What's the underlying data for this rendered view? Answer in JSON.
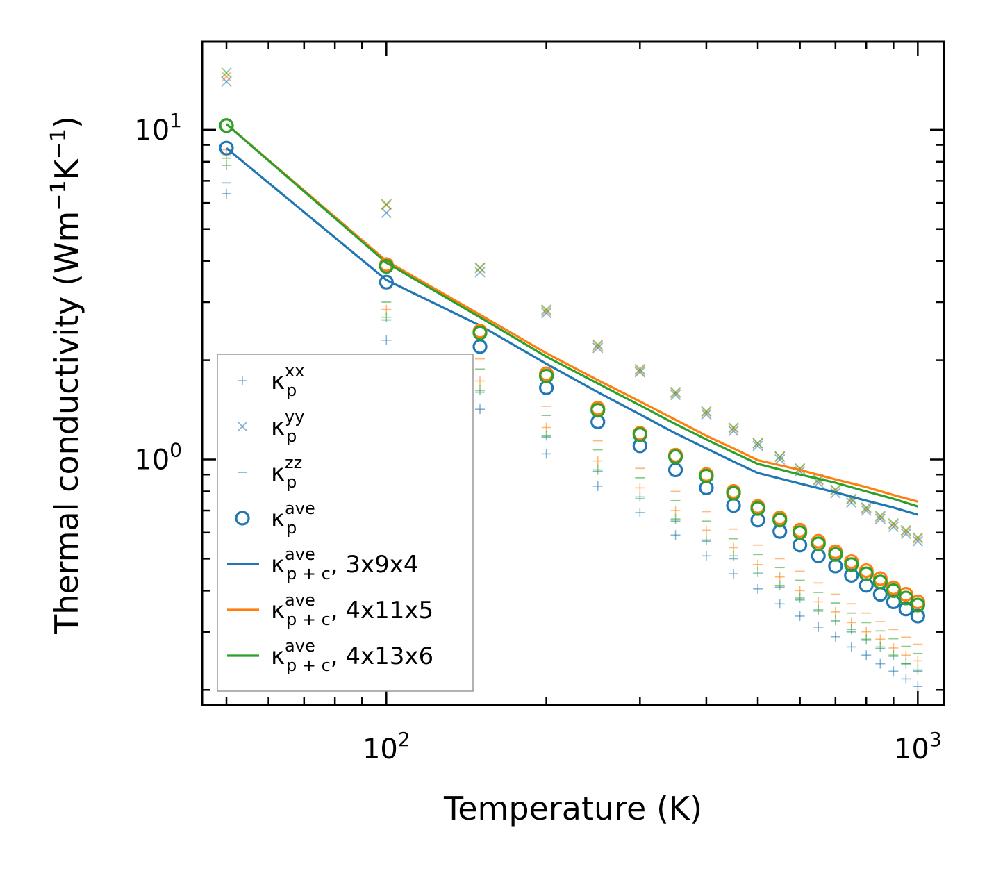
{
  "chart_data": {
    "type": "scatter",
    "xscale": "log",
    "yscale": "log",
    "xlabel": "Temperature (K)",
    "ylabel_parts": {
      "text": "Thermal conductivity (Wm",
      "exp1": "−1",
      "mid": "K",
      "exp2": "−1",
      "end": ")"
    },
    "xlim": [
      45,
      1120
    ],
    "ylim": [
      0.18,
      18.5
    ],
    "xticks": [
      {
        "value": 100,
        "base": "10",
        "exp": "2"
      },
      {
        "value": 1000,
        "base": "10",
        "exp": "3"
      }
    ],
    "yticks": [
      {
        "value": 1,
        "base": "10",
        "exp": "0"
      },
      {
        "value": 10,
        "base": "10",
        "exp": "1"
      }
    ],
    "temperatures": [
      50,
      100,
      150,
      200,
      250,
      300,
      350,
      400,
      450,
      500,
      550,
      600,
      650,
      700,
      750,
      800,
      850,
      900,
      950,
      1000
    ],
    "kappa_p_components": {
      "xx": {
        "3x9x4": [
          6.4,
          2.3,
          1.42,
          1.04,
          0.83,
          0.69,
          0.59,
          0.51,
          0.45,
          0.405,
          0.365,
          0.335,
          0.31,
          0.29,
          0.27,
          0.255,
          0.24,
          0.228,
          0.216,
          0.205
        ],
        "4x11x5": [
          8.4,
          2.85,
          1.73,
          1.25,
          0.99,
          0.82,
          0.7,
          0.61,
          0.54,
          0.48,
          0.44,
          0.4,
          0.37,
          0.345,
          0.32,
          0.3,
          0.285,
          0.268,
          0.255,
          0.245
        ],
        "4x13x6": [
          7.8,
          2.7,
          1.62,
          1.18,
          0.93,
          0.77,
          0.66,
          0.57,
          0.51,
          0.455,
          0.415,
          0.38,
          0.35,
          0.325,
          0.305,
          0.285,
          0.27,
          0.255,
          0.24,
          0.23
        ]
      },
      "yy": {
        "3x9x4": [
          14.0,
          5.6,
          3.7,
          2.78,
          2.18,
          1.84,
          1.57,
          1.37,
          1.22,
          1.1,
          1.0,
          0.92,
          0.85,
          0.79,
          0.74,
          0.7,
          0.66,
          0.625,
          0.595,
          0.565
        ],
        "4x11x5": [
          14.5,
          5.9,
          3.8,
          2.82,
          2.21,
          1.86,
          1.59,
          1.39,
          1.24,
          1.12,
          1.02,
          0.935,
          0.865,
          0.805,
          0.755,
          0.71,
          0.67,
          0.635,
          0.605,
          0.575
        ],
        "4x13x6": [
          14.9,
          5.95,
          3.82,
          2.85,
          2.23,
          1.88,
          1.6,
          1.4,
          1.25,
          1.12,
          1.02,
          0.94,
          0.87,
          0.81,
          0.76,
          0.715,
          0.675,
          0.64,
          0.61,
          0.58
        ]
      },
      "zz": {
        "3x9x4": [
          6.9,
          2.65,
          1.6,
          1.17,
          0.92,
          0.76,
          0.65,
          0.565,
          0.5,
          0.45,
          0.41,
          0.375,
          0.347,
          0.322,
          0.3,
          0.283,
          0.267,
          0.253,
          0.24,
          0.228
        ],
        "4x11x5": [
          8.7,
          3.3,
          2.02,
          1.45,
          1.14,
          0.94,
          0.8,
          0.695,
          0.615,
          0.55,
          0.5,
          0.458,
          0.422,
          0.39,
          0.365,
          0.342,
          0.322,
          0.305,
          0.289,
          0.275
        ],
        "4x13x6": [
          8.2,
          3.0,
          1.88,
          1.36,
          1.07,
          0.88,
          0.75,
          0.65,
          0.575,
          0.515,
          0.47,
          0.43,
          0.395,
          0.367,
          0.342,
          0.32,
          0.302,
          0.286,
          0.271,
          0.258
        ]
      }
    },
    "kappa_p_ave": {
      "3x9x4": [
        8.8,
        3.45,
        2.2,
        1.65,
        1.3,
        1.1,
        0.93,
        0.82,
        0.725,
        0.655,
        0.605,
        0.55,
        0.51,
        0.475,
        0.445,
        0.415,
        0.39,
        0.37,
        0.352,
        0.335
      ],
      "4x11x5": [
        10.3,
        3.9,
        2.45,
        1.82,
        1.43,
        1.2,
        1.03,
        0.9,
        0.8,
        0.72,
        0.665,
        0.61,
        0.565,
        0.525,
        0.49,
        0.46,
        0.435,
        0.408,
        0.39,
        0.37
      ],
      "4x13x6": [
        10.3,
        3.85,
        2.42,
        1.79,
        1.41,
        1.19,
        1.02,
        0.89,
        0.79,
        0.71,
        0.655,
        0.6,
        0.555,
        0.515,
        0.48,
        0.45,
        0.425,
        0.4,
        0.38,
        0.362
      ]
    },
    "kappa_pc_ave_curves": {
      "3x9x4": [
        8.8,
        3.5,
        2.55,
        1.95,
        1.6,
        1.37,
        1.2,
        1.08,
        0.985,
        0.91,
        0.845,
        0.795,
        0.75,
        0.715,
        0.68
      ],
      "4x11x5": [
        10.4,
        4.0,
        2.75,
        2.1,
        1.74,
        1.5,
        1.32,
        1.18,
        1.08,
        0.995,
        0.93,
        0.87,
        0.825,
        0.78,
        0.745
      ],
      "4x13x6": [
        10.4,
        3.95,
        2.7,
        2.05,
        1.7,
        1.46,
        1.28,
        1.15,
        1.05,
        0.97,
        0.9,
        0.85,
        0.8,
        0.76,
        0.72
      ]
    },
    "curve_temperatures": [
      50,
      100,
      150,
      200,
      250,
      300,
      350,
      400,
      450,
      500,
      600,
      700,
      800,
      900,
      1000
    ],
    "series_colors": {
      "3x9x4": "#1f77b4",
      "4x11x5": "#ff7f0e",
      "4x13x6": "#2ca02c"
    },
    "legend": {
      "position": "lower-left",
      "entries": [
        {
          "marker": "plus",
          "color": "#1f77b4",
          "kappa": "κ",
          "sub": "p",
          "sup": "xx",
          "suffix": ""
        },
        {
          "marker": "cross",
          "color": "#1f77b4",
          "kappa": "κ",
          "sub": "p",
          "sup": "yy",
          "suffix": ""
        },
        {
          "marker": "dash",
          "color": "#1f77b4",
          "kappa": "κ",
          "sub": "p",
          "sup": "zz",
          "suffix": ""
        },
        {
          "marker": "circle",
          "color": "#1f77b4",
          "kappa": "κ",
          "sub": "p",
          "sup": "ave",
          "suffix": ""
        },
        {
          "marker": "line",
          "color": "#1f77b4",
          "kappa": "κ",
          "sub": "p + c",
          "sup": "ave",
          "suffix": ", 3x9x4"
        },
        {
          "marker": "line",
          "color": "#ff7f0e",
          "kappa": "κ",
          "sub": "p + c",
          "sup": "ave",
          "suffix": ", 4x11x5"
        },
        {
          "marker": "line",
          "color": "#2ca02c",
          "kappa": "κ",
          "sub": "p + c",
          "sup": "ave",
          "suffix": ", 4x13x6"
        }
      ]
    }
  }
}
